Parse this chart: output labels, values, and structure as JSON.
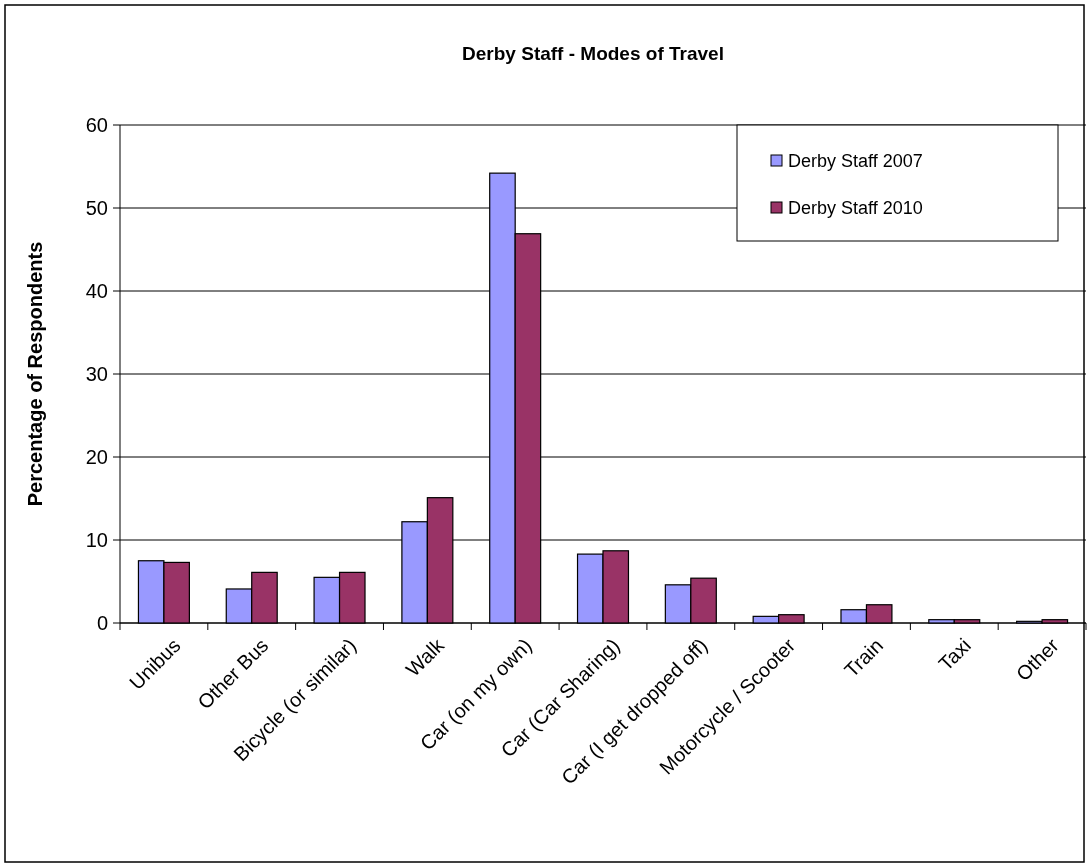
{
  "chart_data": {
    "type": "bar",
    "title": "Derby Staff - Modes of Travel",
    "ylabel": "Percentage of Respondents",
    "categories": [
      "Unibus",
      "Other Bus",
      "Bicycle (or similar)",
      "Walk",
      "Car (on my own)",
      "Car (Car Sharing)",
      "Car (I get dropped off)",
      "Motorcycle / Scooter",
      "Train",
      "Taxi",
      "Other"
    ],
    "series": [
      {
        "name": "Derby Staff 2007",
        "color": "#9999ff",
        "values": [
          7.5,
          4.1,
          5.5,
          12.2,
          54.2,
          8.3,
          4.6,
          0.8,
          1.6,
          0.4,
          0.2
        ]
      },
      {
        "name": "Derby Staff 2010",
        "color": "#993366",
        "values": [
          7.3,
          6.1,
          6.1,
          15.1,
          46.9,
          8.7,
          5.4,
          1,
          2.2,
          0.4,
          0.4
        ]
      }
    ],
    "ylim": [
      0,
      60
    ],
    "yticks": [
      0,
      10,
      20,
      30,
      40,
      50,
      60
    ],
    "grid": "y",
    "legend": "top right"
  }
}
